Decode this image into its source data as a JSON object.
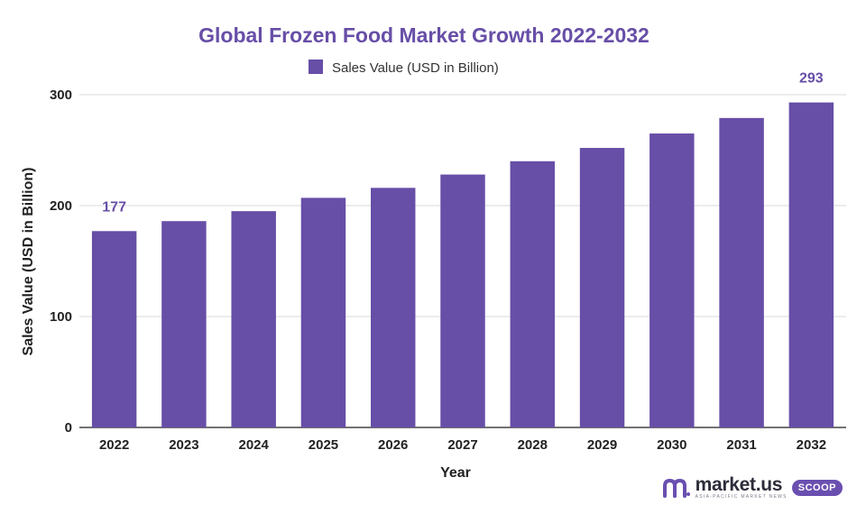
{
  "chart_data": {
    "type": "bar",
    "title": "Global Frozen Food Market Growth 2022-2032",
    "xlabel": "Year",
    "ylabel": "Sales Value (USD in Billion)",
    "ylim": [
      0,
      300
    ],
    "yticks": [
      0,
      100,
      200,
      300
    ],
    "grid": true,
    "legend_position": "top-center",
    "categories": [
      "2022",
      "2023",
      "2024",
      "2025",
      "2026",
      "2027",
      "2028",
      "2029",
      "2030",
      "2031",
      "2032"
    ],
    "series": [
      {
        "name": "Sales Value (USD in Billion)",
        "color": "#674ea7",
        "values": [
          177,
          186,
          195,
          207,
          216,
          228,
          240,
          252,
          265,
          279,
          293
        ]
      }
    ],
    "data_labels": [
      {
        "category": "2022",
        "text": "177"
      },
      {
        "category": "2032",
        "text": "293"
      }
    ]
  },
  "brand": {
    "name": "market.us",
    "tagline": "ASIA-PACIFIC MARKET NEWS",
    "badge": "SCOOP",
    "icon": "market-us-logo-icon"
  },
  "colors": {
    "bar": "#674ea7",
    "title": "#674ea7",
    "data_label": "#674ea7",
    "text": "#222222",
    "grid": "#d9d9d9"
  }
}
